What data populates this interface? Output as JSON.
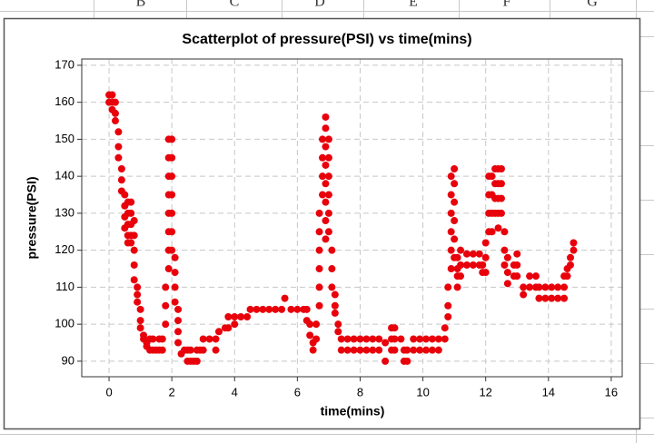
{
  "column_headers": [
    "B",
    "C",
    "D",
    "E",
    "F",
    "G"
  ],
  "chart_data": {
    "type": "scatter",
    "title": "Scatterplot of pressure(PSI) vs time(mins)",
    "x_label": "time(mins)",
    "y_label": "pressure(PSI)",
    "color": "#e8000b",
    "grid": true,
    "xlim": [
      -0.87,
      16.35
    ],
    "ylim": [
      85.8,
      171.7
    ],
    "xticks": [
      0,
      2,
      4,
      6,
      8,
      10,
      12,
      14,
      16
    ],
    "yticks": [
      90,
      100,
      110,
      120,
      130,
      140,
      150,
      160,
      170
    ],
    "x": [
      0,
      0,
      0.1,
      0.1,
      0.1,
      0.2,
      0.2,
      0.2,
      0.3,
      0.3,
      0.3,
      0.4,
      0.4,
      0.4,
      0.5,
      0.5,
      0.5,
      0.5,
      0.6,
      0.6,
      0.6,
      0.6,
      0.6,
      0.7,
      0.7,
      0.7,
      0.7,
      0.7,
      0.8,
      0.8,
      0.8,
      0.8,
      0.8,
      0.9,
      0.9,
      0.9,
      1,
      1,
      1,
      1.1,
      1.1,
      1.2,
      1.2,
      1.3,
      1.3,
      1.4,
      1.4,
      1.5,
      1.6,
      1.6,
      1.7,
      1.7,
      1.8,
      1.8,
      1.8,
      1.9,
      1.9,
      1.9,
      1.9,
      1.9,
      1.9,
      1.9,
      1.9,
      2,
      2,
      2,
      2,
      2,
      2,
      2,
      2.1,
      2.1,
      2.1,
      2.1,
      2.2,
      2.2,
      2.2,
      2.2,
      2.3,
      2.4,
      2.5,
      2.5,
      2.6,
      2.6,
      2.7,
      2.8,
      2.8,
      2.9,
      3,
      3,
      3.2,
      3.4,
      3.4,
      3.5,
      3.7,
      3.8,
      3.8,
      4,
      4,
      4.2,
      4.4,
      4.5,
      4.7,
      4.9,
      5.1,
      5.3,
      5.5,
      5.6,
      5.8,
      6,
      6.2,
      6.3,
      6.3,
      6.4,
      6.4,
      6.5,
      6.5,
      6.6,
      6.6,
      6.7,
      6.7,
      6.7,
      6.7,
      6.7,
      6.7,
      6.8,
      6.8,
      6.8,
      6.8,
      6.9,
      6.9,
      6.9,
      6.9,
      6.9,
      6.9,
      6.9,
      6.9,
      7,
      7,
      7,
      7,
      7,
      7,
      7.1,
      7.1,
      7.1,
      7.2,
      7.2,
      7.2,
      7.3,
      7.3,
      7.4,
      7.4,
      7.6,
      7.6,
      7.8,
      7.8,
      8,
      8,
      8.2,
      8.2,
      8.4,
      8.4,
      8.6,
      8.6,
      8.8,
      8.8,
      9,
      9,
      9,
      9.1,
      9.1,
      9.1,
      9.3,
      9.4,
      9.4,
      9.5,
      9.5,
      9.7,
      9.7,
      9.9,
      9.9,
      10.1,
      10.1,
      10.3,
      10.3,
      10.5,
      10.5,
      10.7,
      10.7,
      10.8,
      10.8,
      10.8,
      10.9,
      10.9,
      10.9,
      10.9,
      10.9,
      10.9,
      11,
      11,
      11,
      11,
      11,
      11,
      11.1,
      11.1,
      11.1,
      11.1,
      11.2,
      11.2,
      11.2,
      11.4,
      11.4,
      11.6,
      11.6,
      11.8,
      11.8,
      11.9,
      11.9,
      12,
      12,
      12,
      12.1,
      12.1,
      12.1,
      12.1,
      12.2,
      12.2,
      12.2,
      12.2,
      12.3,
      12.3,
      12.3,
      12.3,
      12.4,
      12.4,
      12.4,
      12.4,
      12.4,
      12.5,
      12.5,
      12.5,
      12.5,
      12.6,
      12.6,
      12.6,
      12.7,
      12.7,
      12.7,
      12.9,
      12.9,
      13,
      13,
      13,
      13.2,
      13.2,
      13.4,
      13.4,
      13.6,
      13.6,
      13.7,
      13.7,
      13.9,
      13.9,
      14.1,
      14.1,
      14.3,
      14.3,
      14.5,
      14.5,
      14.5,
      14.6,
      14.6,
      14.7,
      14.7,
      14.8,
      14.8
    ],
    "values": [
      162,
      160,
      162,
      160,
      158,
      160,
      157,
      155,
      152,
      148,
      145,
      142,
      139,
      136,
      135,
      132,
      129,
      126,
      133,
      130,
      127,
      124,
      122,
      133,
      130,
      127,
      124,
      122,
      128,
      124,
      120,
      116,
      112,
      110,
      108,
      106,
      104,
      101,
      99,
      97,
      96,
      95,
      94,
      96,
      93,
      96,
      93,
      93,
      96,
      93,
      96,
      93,
      100,
      105,
      110,
      115,
      120,
      125,
      130,
      135,
      140,
      145,
      150,
      150,
      145,
      140,
      135,
      130,
      125,
      120,
      118,
      114,
      110,
      106,
      104,
      101,
      98,
      95,
      92,
      93,
      93,
      90,
      93,
      90,
      90,
      93,
      90,
      93,
      96,
      93,
      96,
      96,
      93,
      98,
      99,
      102,
      99,
      102,
      100,
      102,
      102,
      104,
      104,
      104,
      104,
      104,
      104,
      107,
      104,
      104,
      104,
      104,
      101,
      100,
      97,
      95,
      93,
      96,
      100,
      105,
      110,
      115,
      120,
      125,
      130,
      135,
      140,
      145,
      150,
      156,
      153,
      148,
      143,
      138,
      133,
      128,
      123,
      150,
      145,
      140,
      135,
      130,
      125,
      120,
      115,
      110,
      108,
      105,
      103,
      100,
      98,
      96,
      93,
      96,
      93,
      96,
      93,
      96,
      93,
      96,
      93,
      96,
      93,
      96,
      93,
      95,
      90,
      99,
      96,
      93,
      99,
      96,
      93,
      96,
      93,
      90,
      93,
      90,
      96,
      93,
      96,
      93,
      96,
      93,
      96,
      93,
      96,
      93,
      99,
      96,
      102,
      105,
      110,
      115,
      120,
      125,
      130,
      135,
      140,
      142,
      138,
      133,
      128,
      123,
      118,
      113,
      110,
      115,
      118,
      113,
      116,
      120,
      116,
      119,
      116,
      119,
      116,
      119,
      114,
      116,
      114,
      118,
      122,
      125,
      130,
      135,
      140,
      140,
      135,
      130,
      125,
      142,
      138,
      134,
      130,
      142,
      138,
      134,
      130,
      126,
      142,
      138,
      134,
      130,
      125,
      120,
      116,
      118,
      114,
      111,
      116,
      113,
      119,
      116,
      113,
      110,
      108,
      113,
      110,
      113,
      110,
      110,
      107,
      110,
      107,
      110,
      107,
      110,
      107,
      113,
      110,
      107,
      115,
      113,
      118,
      116,
      122,
      120
    ]
  }
}
